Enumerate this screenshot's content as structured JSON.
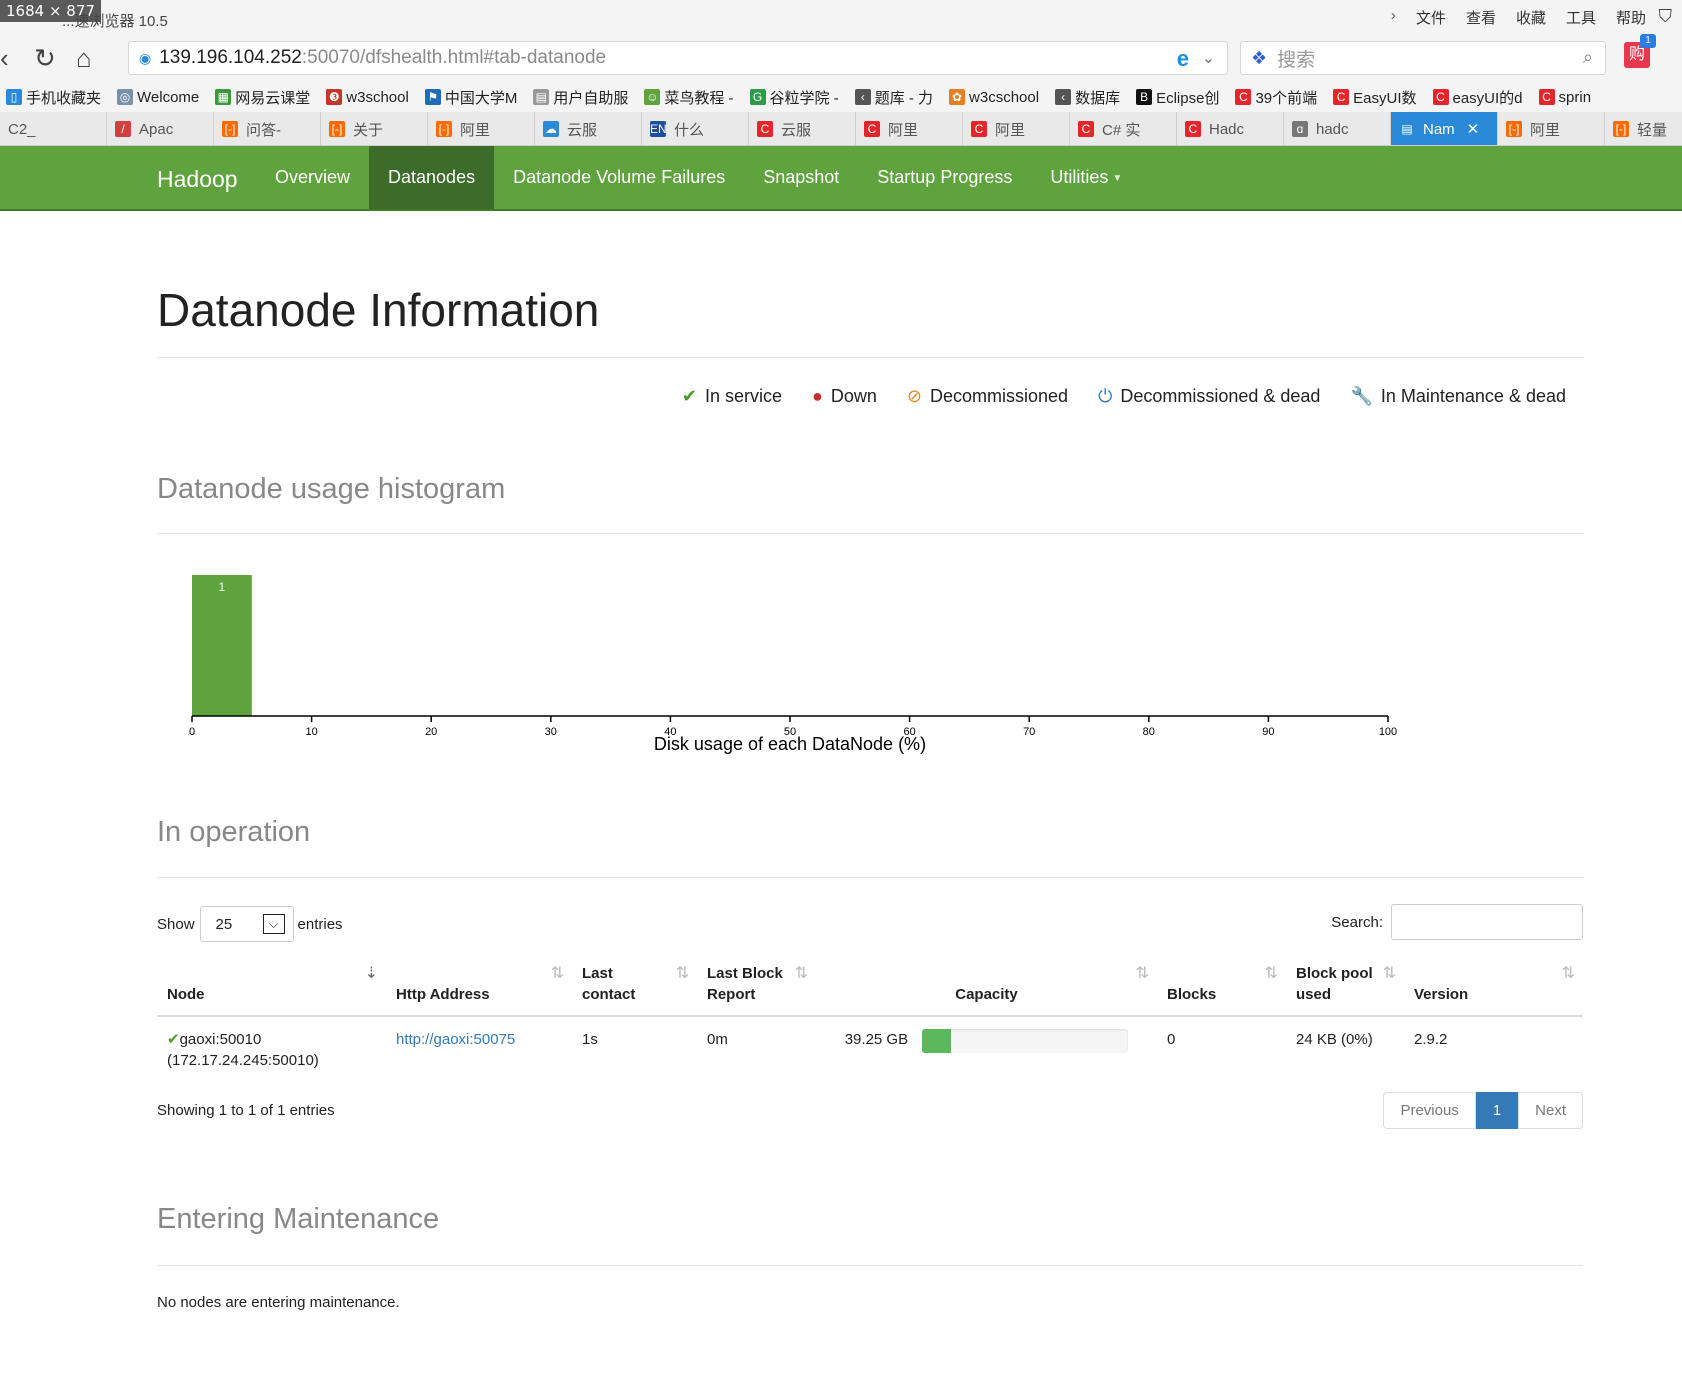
{
  "chrome": {
    "dimension_badge": "1684 × 877",
    "browser_name": "...速浏览器 10.5",
    "menu": [
      "文件",
      "查看",
      "收藏",
      "工具",
      "帮助"
    ],
    "address": {
      "host": "139.196.104.252",
      "path": ":50070/dfshealth.html#tab-datanode"
    },
    "search_placeholder": "搜索",
    "shop_badge": "1",
    "bookmarks": [
      {
        "label": "手机收藏夹",
        "icon": "phone-icon",
        "color": "#2a8ad8"
      },
      {
        "label": "Welcome",
        "icon": "globe-icon",
        "color": "#7a8fa8"
      },
      {
        "label": "网易云课堂",
        "icon": "chart-icon",
        "color": "#3a9a3a"
      },
      {
        "label": "w3school",
        "icon": "w3-icon",
        "color": "#c0392b"
      },
      {
        "label": "中国大学M",
        "icon": "flag-icon",
        "color": "#1e6bb8"
      },
      {
        "label": "用户自助服",
        "icon": "doc-icon",
        "color": "#999999"
      },
      {
        "label": "菜鸟教程 -",
        "icon": "bird-icon",
        "color": "#5fa33e"
      },
      {
        "label": "谷粒学院 -",
        "icon": "g-icon",
        "color": "#2e9b48"
      },
      {
        "label": "题库 - 力",
        "icon": "leetcode-icon",
        "color": "#555555"
      },
      {
        "label": "w3cschool",
        "icon": "w3c-icon",
        "color": "#e67e22"
      },
      {
        "label": "数据库",
        "icon": "leetcode-icon",
        "color": "#555555"
      },
      {
        "label": "Eclipse创",
        "icon": "b-icon",
        "color": "#111111"
      },
      {
        "label": "39个前端",
        "icon": "csdn-icon",
        "color": "#e5252a"
      },
      {
        "label": "EasyUI数",
        "icon": "csdn-icon",
        "color": "#e5252a"
      },
      {
        "label": "easyUI的d",
        "icon": "csdn-icon",
        "color": "#e5252a"
      },
      {
        "label": "sprin",
        "icon": "csdn-icon",
        "color": "#e5252a"
      }
    ],
    "tabs": [
      {
        "label": "C2_",
        "icon": "none",
        "color": "#e9e9e9"
      },
      {
        "label": "Apac",
        "icon": "feather-icon",
        "color": "#d04040"
      },
      {
        "label": "问答-",
        "icon": "aliyun-icon",
        "color": "#ff6a00"
      },
      {
        "label": "关于",
        "icon": "aliyun-icon",
        "color": "#ff6a00"
      },
      {
        "label": "阿里",
        "icon": "aliyun-icon",
        "color": "#ff6a00"
      },
      {
        "label": "云服",
        "icon": "cloud-icon",
        "color": "#2a8ad8"
      },
      {
        "label": "什么",
        "icon": "en-icon",
        "color": "#1e4f9c"
      },
      {
        "label": "云服",
        "icon": "csdn-icon",
        "color": "#e5252a"
      },
      {
        "label": "阿里",
        "icon": "csdn-icon",
        "color": "#e5252a"
      },
      {
        "label": "阿里",
        "icon": "csdn-icon",
        "color": "#e5252a"
      },
      {
        "label": "C# 实",
        "icon": "csdn-icon",
        "color": "#e5252a"
      },
      {
        "label": "Hadc",
        "icon": "csdn-icon",
        "color": "#e5252a"
      },
      {
        "label": "hadc",
        "icon": "hadoop-icon",
        "color": "#777777"
      },
      {
        "label": "Nam",
        "icon": "doc-icon",
        "color": "#ffffff",
        "active": true
      },
      {
        "label": "阿里",
        "icon": "aliyun-icon",
        "color": "#ff6a00"
      },
      {
        "label": "轻量",
        "icon": "aliyun-icon",
        "color": "#ff6a00"
      }
    ]
  },
  "navbar": {
    "brand": "Hadoop",
    "items": [
      "Overview",
      "Datanodes",
      "Datanode Volume Failures",
      "Snapshot",
      "Startup Progress",
      "Utilities"
    ],
    "active": "Datanodes"
  },
  "page": {
    "title": "Datanode Information",
    "legend": [
      {
        "label": "In service",
        "icon": "check-icon",
        "color": "#4a9e2c"
      },
      {
        "label": "Down",
        "icon": "exclamation-circle-icon",
        "color": "#c9302c"
      },
      {
        "label": "Decommissioned",
        "icon": "ban-icon",
        "color": "#e08a1e"
      },
      {
        "label": "Decommissioned & dead",
        "icon": "power-icon",
        "color": "#337ab7"
      },
      {
        "label": "In Maintenance & dead",
        "icon": "wrench-icon",
        "color": "#f0ad4e"
      }
    ],
    "histogram_title": "Datanode usage histogram",
    "in_operation_title": "In operation",
    "show_label": "Show",
    "show_value": "25",
    "entries_label": "entries",
    "search_label": "Search:",
    "table": {
      "columns": [
        "Node",
        "Http Address",
        "Last contact",
        "Last Block Report",
        "Capacity",
        "Blocks",
        "Block pool used",
        "Version"
      ],
      "rows": [
        {
          "node": "gaoxi:50010",
          "node_ip": "(172.17.24.245:50010)",
          "http": "http://gaoxi:50075",
          "last_contact": "1s",
          "last_block_report": "0m",
          "capacity": "39.25 GB",
          "capacity_used_fraction": 0.14,
          "blocks": "0",
          "block_pool_used": "24 KB (0%)",
          "version": "2.9.2"
        }
      ]
    },
    "showing": "Showing 1 to 1 of 1 entries",
    "pager": {
      "previous": "Previous",
      "current": "1",
      "next": "Next"
    },
    "entering_maintenance_title": "Entering Maintenance",
    "no_nodes": "No nodes are entering maintenance."
  },
  "chart_data": {
    "type": "bar",
    "title": "",
    "xlabel": "Disk usage of each DataNode (%)",
    "ylabel": "",
    "xlim": [
      0,
      100
    ],
    "xticks": [
      0,
      10,
      20,
      30,
      40,
      50,
      60,
      70,
      80,
      90,
      100
    ],
    "bins": [
      {
        "x0": 0,
        "x1": 5,
        "count": 1
      }
    ],
    "bar_color": "#5fa33e",
    "grid": false
  }
}
